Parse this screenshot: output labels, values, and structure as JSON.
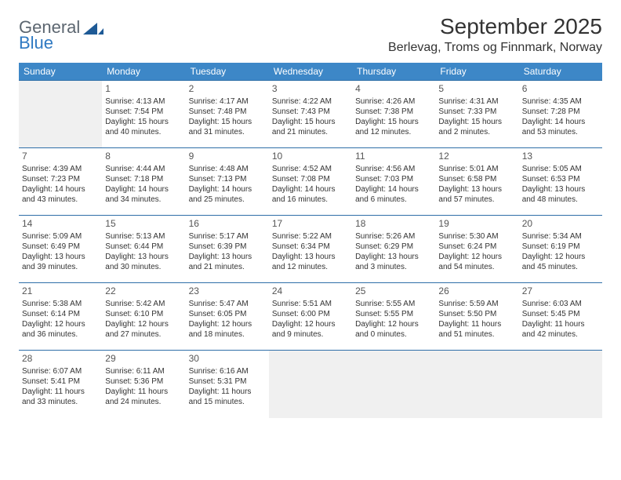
{
  "logo": {
    "word1": "General",
    "word2": "Blue",
    "mark_color": "#1e5a96"
  },
  "title": "September 2025",
  "location": "Berlevag, Troms og Finnmark, Norway",
  "header_bg": "#3d87c7",
  "header_fg": "#ffffff",
  "border_color": "#2f6fa8",
  "empty_bg": "#f0f0f0",
  "weekdays": [
    "Sunday",
    "Monday",
    "Tuesday",
    "Wednesday",
    "Thursday",
    "Friday",
    "Saturday"
  ],
  "weeks": [
    [
      null,
      {
        "n": "1",
        "sr": "4:13 AM",
        "ss": "7:54 PM",
        "dl": "15 hours and 40 minutes."
      },
      {
        "n": "2",
        "sr": "4:17 AM",
        "ss": "7:48 PM",
        "dl": "15 hours and 31 minutes."
      },
      {
        "n": "3",
        "sr": "4:22 AM",
        "ss": "7:43 PM",
        "dl": "15 hours and 21 minutes."
      },
      {
        "n": "4",
        "sr": "4:26 AM",
        "ss": "7:38 PM",
        "dl": "15 hours and 12 minutes."
      },
      {
        "n": "5",
        "sr": "4:31 AM",
        "ss": "7:33 PM",
        "dl": "15 hours and 2 minutes."
      },
      {
        "n": "6",
        "sr": "4:35 AM",
        "ss": "7:28 PM",
        "dl": "14 hours and 53 minutes."
      }
    ],
    [
      {
        "n": "7",
        "sr": "4:39 AM",
        "ss": "7:23 PM",
        "dl": "14 hours and 43 minutes."
      },
      {
        "n": "8",
        "sr": "4:44 AM",
        "ss": "7:18 PM",
        "dl": "14 hours and 34 minutes."
      },
      {
        "n": "9",
        "sr": "4:48 AM",
        "ss": "7:13 PM",
        "dl": "14 hours and 25 minutes."
      },
      {
        "n": "10",
        "sr": "4:52 AM",
        "ss": "7:08 PM",
        "dl": "14 hours and 16 minutes."
      },
      {
        "n": "11",
        "sr": "4:56 AM",
        "ss": "7:03 PM",
        "dl": "14 hours and 6 minutes."
      },
      {
        "n": "12",
        "sr": "5:01 AM",
        "ss": "6:58 PM",
        "dl": "13 hours and 57 minutes."
      },
      {
        "n": "13",
        "sr": "5:05 AM",
        "ss": "6:53 PM",
        "dl": "13 hours and 48 minutes."
      }
    ],
    [
      {
        "n": "14",
        "sr": "5:09 AM",
        "ss": "6:49 PM",
        "dl": "13 hours and 39 minutes."
      },
      {
        "n": "15",
        "sr": "5:13 AM",
        "ss": "6:44 PM",
        "dl": "13 hours and 30 minutes."
      },
      {
        "n": "16",
        "sr": "5:17 AM",
        "ss": "6:39 PM",
        "dl": "13 hours and 21 minutes."
      },
      {
        "n": "17",
        "sr": "5:22 AM",
        "ss": "6:34 PM",
        "dl": "13 hours and 12 minutes."
      },
      {
        "n": "18",
        "sr": "5:26 AM",
        "ss": "6:29 PM",
        "dl": "13 hours and 3 minutes."
      },
      {
        "n": "19",
        "sr": "5:30 AM",
        "ss": "6:24 PM",
        "dl": "12 hours and 54 minutes."
      },
      {
        "n": "20",
        "sr": "5:34 AM",
        "ss": "6:19 PM",
        "dl": "12 hours and 45 minutes."
      }
    ],
    [
      {
        "n": "21",
        "sr": "5:38 AM",
        "ss": "6:14 PM",
        "dl": "12 hours and 36 minutes."
      },
      {
        "n": "22",
        "sr": "5:42 AM",
        "ss": "6:10 PM",
        "dl": "12 hours and 27 minutes."
      },
      {
        "n": "23",
        "sr": "5:47 AM",
        "ss": "6:05 PM",
        "dl": "12 hours and 18 minutes."
      },
      {
        "n": "24",
        "sr": "5:51 AM",
        "ss": "6:00 PM",
        "dl": "12 hours and 9 minutes."
      },
      {
        "n": "25",
        "sr": "5:55 AM",
        "ss": "5:55 PM",
        "dl": "12 hours and 0 minutes."
      },
      {
        "n": "26",
        "sr": "5:59 AM",
        "ss": "5:50 PM",
        "dl": "11 hours and 51 minutes."
      },
      {
        "n": "27",
        "sr": "6:03 AM",
        "ss": "5:45 PM",
        "dl": "11 hours and 42 minutes."
      }
    ],
    [
      {
        "n": "28",
        "sr": "6:07 AM",
        "ss": "5:41 PM",
        "dl": "11 hours and 33 minutes."
      },
      {
        "n": "29",
        "sr": "6:11 AM",
        "ss": "5:36 PM",
        "dl": "11 hours and 24 minutes."
      },
      {
        "n": "30",
        "sr": "6:16 AM",
        "ss": "5:31 PM",
        "dl": "11 hours and 15 minutes."
      },
      null,
      null,
      null,
      null
    ]
  ],
  "labels": {
    "sunrise": "Sunrise:",
    "sunset": "Sunset:",
    "daylight": "Daylight:"
  }
}
